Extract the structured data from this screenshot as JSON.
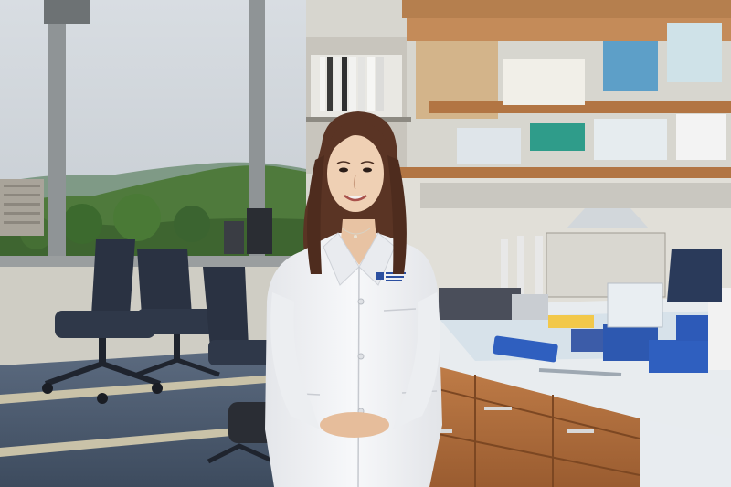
{
  "scene": {
    "subject": "researcher-in-white-lab-coat",
    "setting": "laboratory-bench-with-windows",
    "colors": {
      "sky": "#cfd6dc",
      "hills": "#4f7a3c",
      "lab_coat": "#f2f3f5",
      "hair": "#5a3424",
      "cabinet_wood": "#b06e3c",
      "floor_blue": "#4b5f78",
      "chair": "#2a3242",
      "bench_top": "#e8ecef",
      "coat_logo": "#2b4fa0"
    }
  }
}
